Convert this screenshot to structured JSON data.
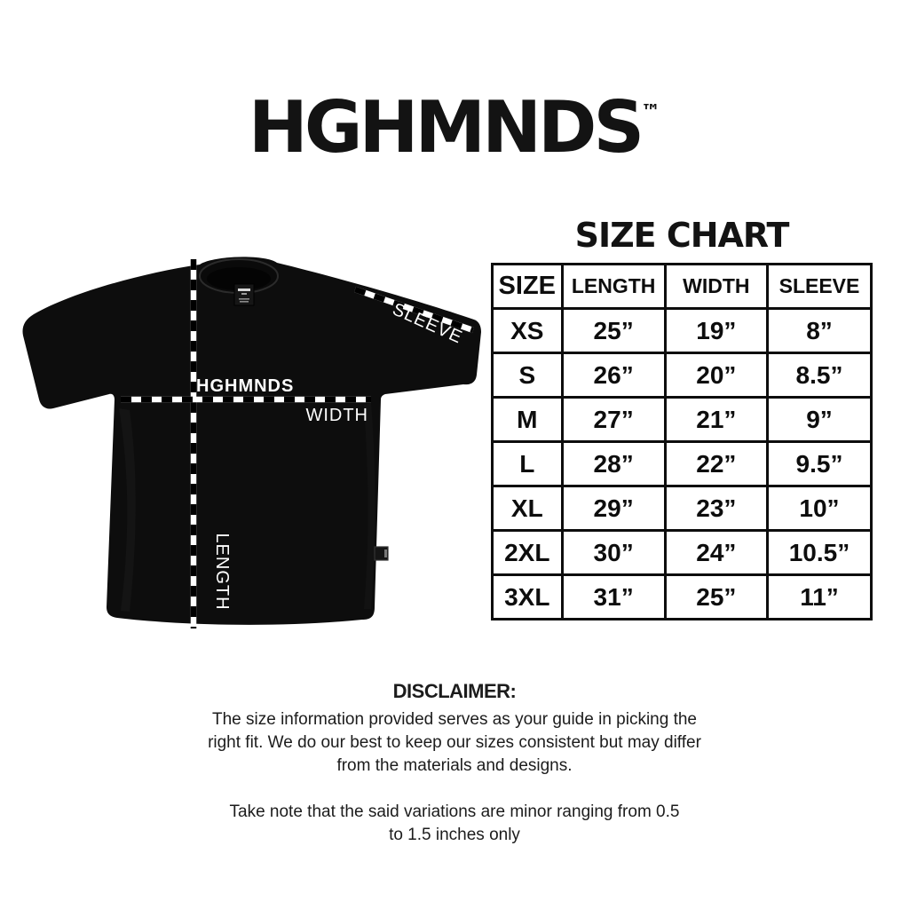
{
  "brand": {
    "logo": "HGHMNDS",
    "trademark": "™"
  },
  "shirt": {
    "chest_logo": "HGHMNDS",
    "labels": {
      "sleeve": "SLEEVE",
      "width": "WIDTH",
      "length": "LENGTH"
    }
  },
  "size_chart": {
    "title": "SIZE CHART",
    "columns": [
      "SIZE",
      "LENGTH",
      "WIDTH",
      "SLEEVE"
    ],
    "rows": [
      {
        "size": "XS",
        "length": "25”",
        "width": "19”",
        "sleeve": "8”"
      },
      {
        "size": "S",
        "length": "26”",
        "width": "20”",
        "sleeve": "8.5”"
      },
      {
        "size": "M",
        "length": "27”",
        "width": "21”",
        "sleeve": "9”"
      },
      {
        "size": "L",
        "length": "28”",
        "width": "22”",
        "sleeve": "9.5”"
      },
      {
        "size": "XL",
        "length": "29”",
        "width": "23”",
        "sleeve": "10”"
      },
      {
        "size": "2XL",
        "length": "30”",
        "width": "24”",
        "sleeve": "10.5”"
      },
      {
        "size": "3XL",
        "length": "31”",
        "width": "25”",
        "sleeve": "11”"
      }
    ]
  },
  "disclaimer": {
    "heading": "DISCLAIMER:",
    "paragraph1": "The size information provided serves as your guide in picking the right fit. We do our best to keep our sizes consistent but may differ from the materials and designs.",
    "paragraph2": "Take note that the said variations are minor ranging from 0.5 to 1.5 inches only"
  },
  "colors": {
    "background": "#ffffff",
    "ink": "#131313",
    "shirt_black": "#0d0d0d",
    "label_white": "#ffffff"
  }
}
